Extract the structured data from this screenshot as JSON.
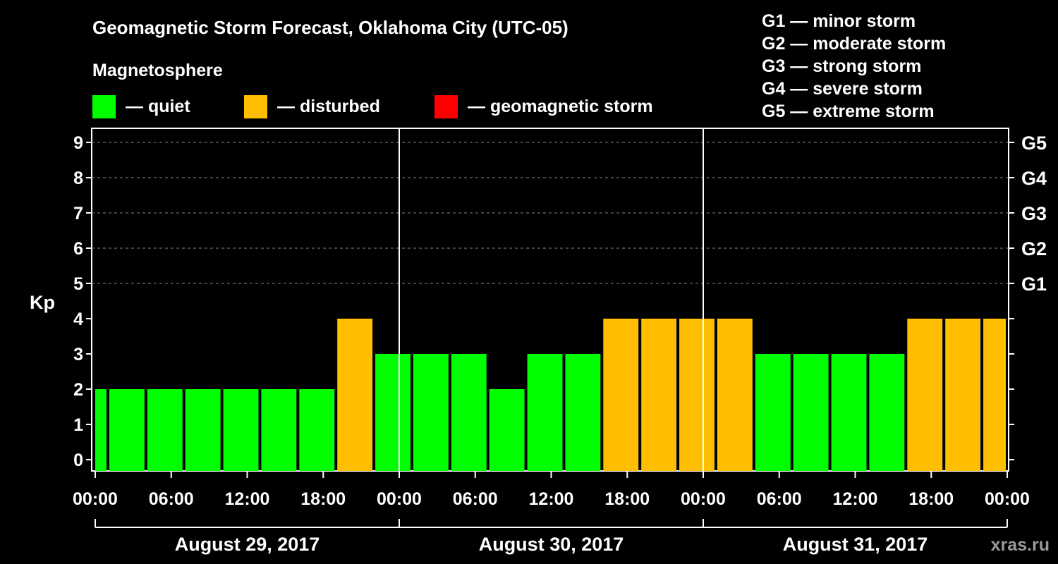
{
  "title": "Geomagnetic Storm Forecast, Oklahoma City (UTC-05)",
  "subtitle": "Magnetosphere",
  "legend": [
    {
      "label": "— quiet",
      "color": "#00ff00"
    },
    {
      "label": "— disturbed",
      "color": "#ffbf00"
    },
    {
      "label": "— geomagnetic storm",
      "color": "#ff0000"
    }
  ],
  "storm_levels": [
    "G1 — minor storm",
    "G2 — moderate storm",
    "G3 — strong storm",
    "G4 — severe storm",
    "G5 — extreme storm"
  ],
  "watermark": "xras.ru",
  "chart_data": {
    "type": "bar",
    "ylabel": "Kp",
    "ylim": [
      0,
      9
    ],
    "yticks": [
      0,
      1,
      2,
      3,
      4,
      5,
      6,
      7,
      8,
      9
    ],
    "right_ticks": [
      {
        "kp": 5,
        "label": "G1"
      },
      {
        "kp": 6,
        "label": "G2"
      },
      {
        "kp": 7,
        "label": "G3"
      },
      {
        "kp": 8,
        "label": "G4"
      },
      {
        "kp": 9,
        "label": "G5"
      }
    ],
    "x_tick_labels": [
      "00:00",
      "06:00",
      "12:00",
      "18:00",
      "00:00",
      "06:00",
      "12:00",
      "18:00",
      "00:00",
      "06:00",
      "12:00",
      "18:00",
      "00:00"
    ],
    "days": [
      "August 29, 2017",
      "August 30, 2017",
      "August 31, 2017"
    ],
    "bars": [
      {
        "start": "00:00",
        "end": "01:00",
        "kp": 2,
        "status": "quiet"
      },
      {
        "start": "01:00",
        "end": "04:00",
        "kp": 2,
        "status": "quiet"
      },
      {
        "start": "04:00",
        "end": "07:00",
        "kp": 2,
        "status": "quiet"
      },
      {
        "start": "07:00",
        "end": "10:00",
        "kp": 2,
        "status": "quiet"
      },
      {
        "start": "10:00",
        "end": "13:00",
        "kp": 2,
        "status": "quiet"
      },
      {
        "start": "13:00",
        "end": "16:00",
        "kp": 2,
        "status": "quiet"
      },
      {
        "start": "16:00",
        "end": "19:00",
        "kp": 2,
        "status": "quiet"
      },
      {
        "start": "19:00",
        "end": "22:00",
        "kp": 4,
        "status": "disturbed"
      },
      {
        "start": "22:00",
        "end": "01:00",
        "kp": 3,
        "status": "quiet"
      },
      {
        "start": "01:00",
        "end": "04:00",
        "kp": 3,
        "status": "quiet"
      },
      {
        "start": "04:00",
        "end": "07:00",
        "kp": 3,
        "status": "quiet"
      },
      {
        "start": "07:00",
        "end": "10:00",
        "kp": 2,
        "status": "quiet"
      },
      {
        "start": "10:00",
        "end": "13:00",
        "kp": 3,
        "status": "quiet"
      },
      {
        "start": "13:00",
        "end": "16:00",
        "kp": 3,
        "status": "quiet"
      },
      {
        "start": "16:00",
        "end": "19:00",
        "kp": 4,
        "status": "disturbed"
      },
      {
        "start": "19:00",
        "end": "22:00",
        "kp": 4,
        "status": "disturbed"
      },
      {
        "start": "22:00",
        "end": "01:00",
        "kp": 4,
        "status": "disturbed"
      },
      {
        "start": "01:00",
        "end": "04:00",
        "kp": 4,
        "status": "disturbed"
      },
      {
        "start": "04:00",
        "end": "07:00",
        "kp": 3,
        "status": "quiet"
      },
      {
        "start": "07:00",
        "end": "10:00",
        "kp": 3,
        "status": "quiet"
      },
      {
        "start": "10:00",
        "end": "13:00",
        "kp": 3,
        "status": "quiet"
      },
      {
        "start": "13:00",
        "end": "16:00",
        "kp": 3,
        "status": "quiet"
      },
      {
        "start": "16:00",
        "end": "19:00",
        "kp": 4,
        "status": "disturbed"
      },
      {
        "start": "19:00",
        "end": "22:00",
        "kp": 4,
        "status": "disturbed"
      },
      {
        "start": "22:00",
        "end": "00:00",
        "kp": 4,
        "status": "disturbed"
      }
    ],
    "status_colors": {
      "quiet": "#00ff00",
      "disturbed": "#ffbf00",
      "storm": "#ff0000"
    },
    "grid": "dashed horizontal lines at Kp 5-9",
    "day_separators": true
  }
}
